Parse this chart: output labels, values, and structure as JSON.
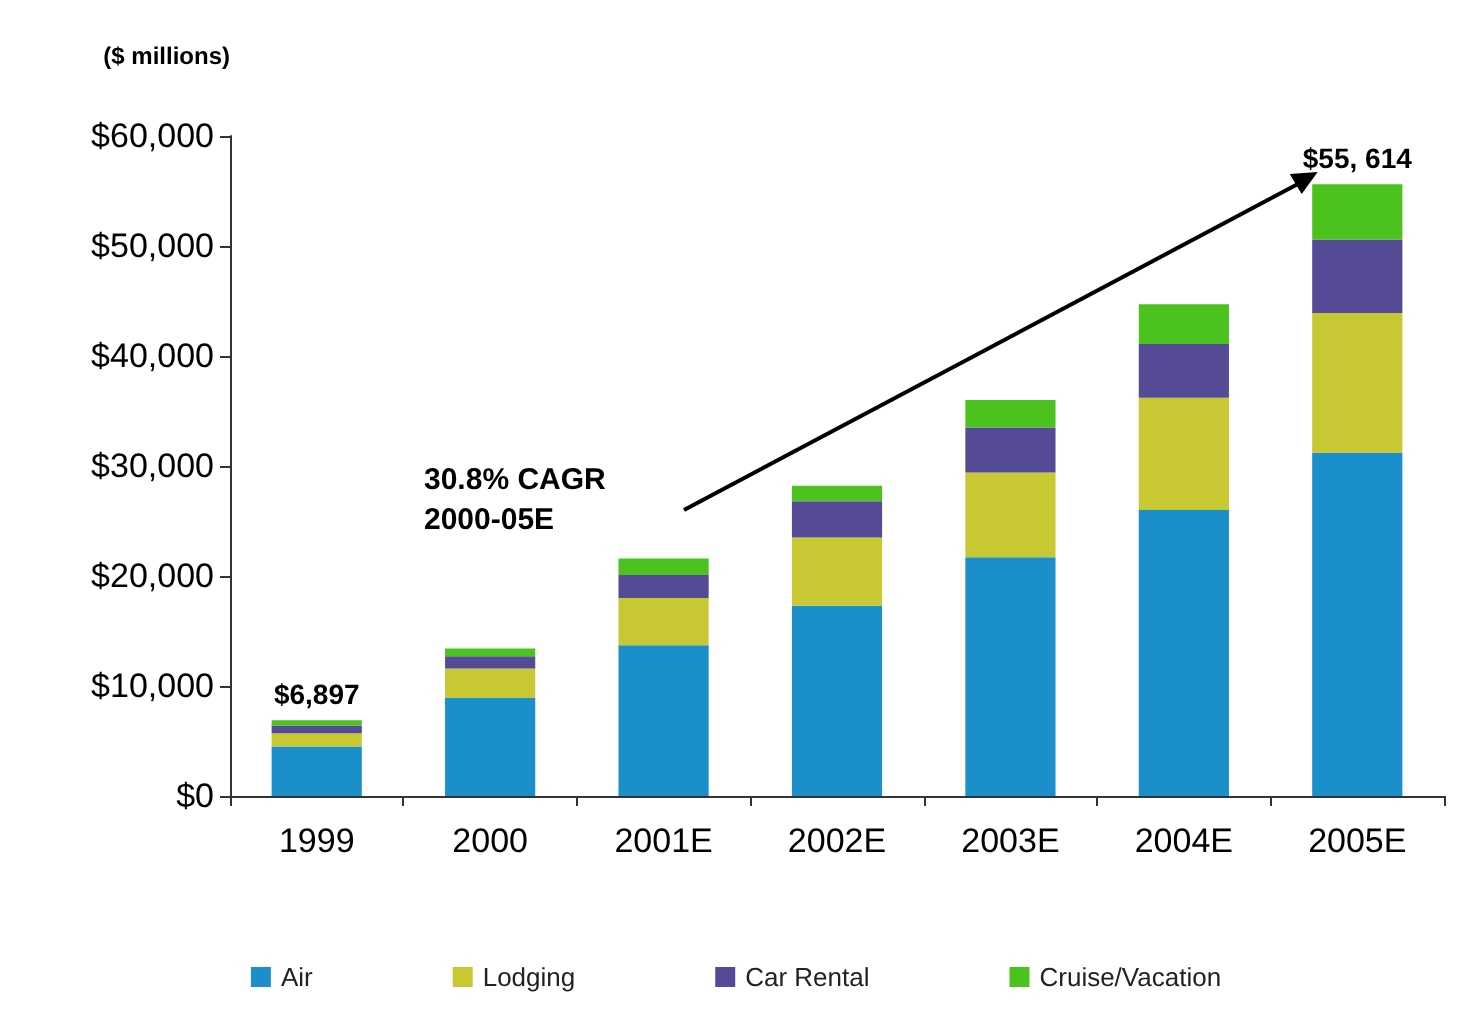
{
  "chart_data": {
    "type": "bar",
    "stacked": true,
    "ylabel": "($ millions)",
    "categories": [
      "1999",
      "2000",
      "2001E",
      "2002E",
      "2003E",
      "2004E",
      "2005E"
    ],
    "series": [
      {
        "name": "Air",
        "color": "#1a8fc9",
        "values": [
          4500,
          8900,
          13700,
          17300,
          21700,
          26000,
          31200
        ]
      },
      {
        "name": "Lodging",
        "color": "#c8c832",
        "values": [
          1200,
          2700,
          4300,
          6200,
          7700,
          10200,
          12700
        ]
      },
      {
        "name": "Car Rental",
        "color": "#544a96",
        "values": [
          700,
          1100,
          2100,
          3300,
          4100,
          4900,
          6700
        ]
      },
      {
        "name": "Cruise/Vacation",
        "color": "#4cc21e",
        "values": [
          497,
          700,
          1500,
          1400,
          2500,
          3600,
          5014
        ]
      }
    ],
    "ylim": [
      0,
      60000
    ],
    "yticks": [
      {
        "value": 0,
        "label": "$0"
      },
      {
        "value": 10000,
        "label": "$10,000"
      },
      {
        "value": 20000,
        "label": "$20,000"
      },
      {
        "value": 30000,
        "label": "$30,000"
      },
      {
        "value": 40000,
        "label": "$40,000"
      },
      {
        "value": 50000,
        "label": "$50,000"
      },
      {
        "value": 60000,
        "label": "$60,000"
      }
    ],
    "totals": [
      "$6,897",
      null,
      null,
      null,
      null,
      null,
      "$55, 614"
    ],
    "annotations": [
      "30.8% CAGR 2000-05E"
    ],
    "grid": false,
    "legend": "bottom"
  }
}
